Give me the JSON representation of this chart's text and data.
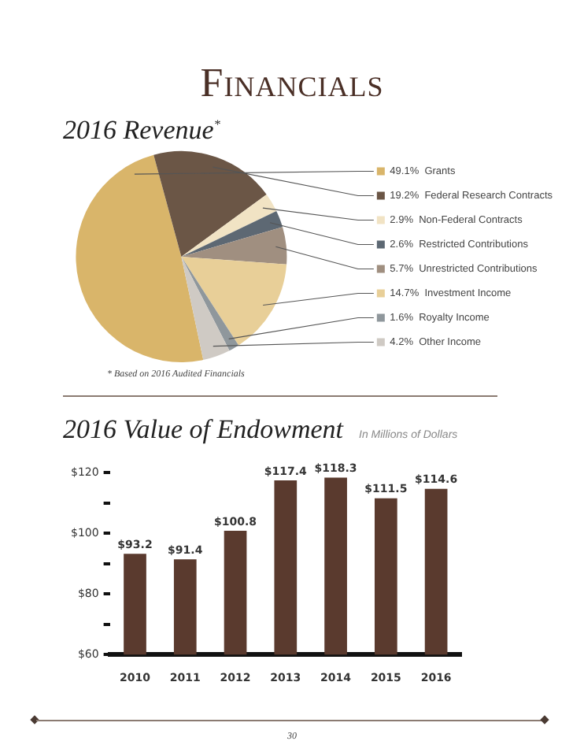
{
  "chart_data": [
    {
      "type": "pie",
      "title": "2016 Revenue$^{*}$",
      "annotations": [
        "Financials",
        "* Based on 2016 Audited Financials"
      ],
      "categories": [
        "Grants",
        "Federal Research Contracts",
        "Non-Federal Contracts",
        "Restricted Contributions",
        "Unrestricted Contributions",
        "Investment Income",
        "Royalty Income",
        "Other Income"
      ],
      "values": [
        49.1,
        19.2,
        2.9,
        2.6,
        5.7,
        14.7,
        1.6,
        4.2
      ],
      "value_labels": [
        "49.1%",
        "19.2%",
        "2.9%",
        "2.6%",
        "5.7%",
        "14.7%",
        "1.6%",
        "4.2%"
      ],
      "colors": [
        "#d9b56a",
        "#6b5646",
        "#f1e3c4",
        "#5d6873",
        "#a08f80",
        "#e8cf98",
        "#8f979c",
        "#cfcac4"
      ],
      "legend": "right"
    },
    {
      "type": "bar",
      "title": "2016 Value of Endowment",
      "subtitle": "In Millions of Dollars",
      "annotations": [
        "30"
      ],
      "categories": [
        "2010",
        "2011",
        "2012",
        "2013",
        "2014",
        "2015",
        "2016"
      ],
      "values": [
        93.2,
        91.4,
        100.8,
        117.4,
        118.3,
        111.5,
        114.6
      ],
      "value_labels": [
        "$93.2",
        "$91.4",
        "$100.8",
        "$117.4",
        "$118.3",
        "$111.5",
        "$114.6"
      ],
      "color": "#5a3a2e",
      "ylim": [
        60,
        120
      ],
      "yticks": [
        {
          "value": 60,
          "label": "$60"
        },
        {
          "value": 70,
          "label": null
        },
        {
          "value": 80,
          "label": "$80"
        },
        {
          "value": 90,
          "label": null
        },
        {
          "value": 100,
          "label": "$100"
        },
        {
          "value": 110,
          "label": null
        },
        {
          "value": 120,
          "label": "$120"
        }
      ],
      "grid": false,
      "legend": false
    }
  ]
}
